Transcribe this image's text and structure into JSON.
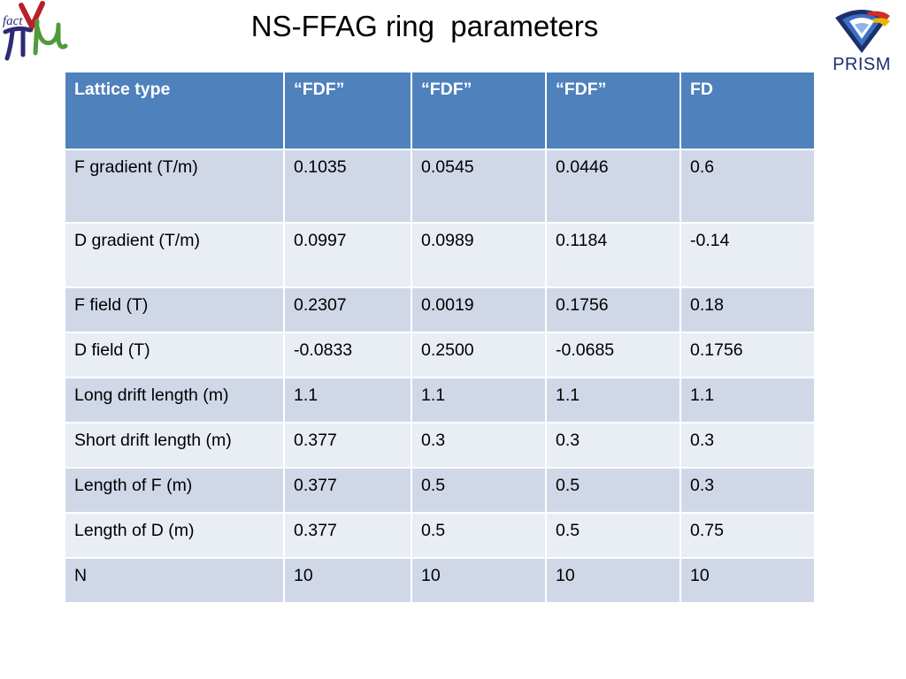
{
  "slide": {
    "title": "NS-FFAG ring  parameters"
  },
  "logos": {
    "left": {
      "icon": "nufact-logo",
      "text": "fact",
      "colors": [
        "#b8202a",
        "#2e2a78",
        "#4f9a3a"
      ]
    },
    "right": {
      "icon": "prism-logo",
      "text": "PRISM",
      "colors": [
        "#1d2f6b",
        "#3b6fc4",
        "#d22c2c",
        "#f0b400"
      ]
    }
  },
  "table": {
    "header_color": "#4f81bd",
    "row_colors": [
      "#d0d8e8",
      "#e9edf4"
    ],
    "headers": [
      "Lattice type",
      "“FDF”",
      "“FDF”",
      "“FDF”",
      "FD"
    ],
    "rows": [
      [
        "F gradient (T/m)",
        "0.1035",
        "0.0545",
        "0.0446",
        "0.6"
      ],
      [
        "D gradient (T/m)",
        "0.0997",
        "0.0989",
        "0.1184",
        "-0.14"
      ],
      [
        "F field (T)",
        "0.2307",
        "0.0019",
        "0.1756",
        "0.18"
      ],
      [
        "D field (T)",
        "-0.0833",
        "0.2500",
        "-0.0685",
        "0.1756"
      ],
      [
        "Long drift length (m)",
        "1.1",
        "1.1",
        "1.1",
        "1.1"
      ],
      [
        "Short drift length (m)",
        "0.377",
        "0.3",
        "0.3",
        "0.3"
      ],
      [
        "Length of F (m)",
        "0.377",
        "0.5",
        "0.5",
        "0.3"
      ],
      [
        "Length of D (m)",
        "0.377",
        "0.5",
        "0.5",
        "0.75"
      ],
      [
        "N",
        "10",
        "10",
        "10",
        "10"
      ]
    ]
  }
}
